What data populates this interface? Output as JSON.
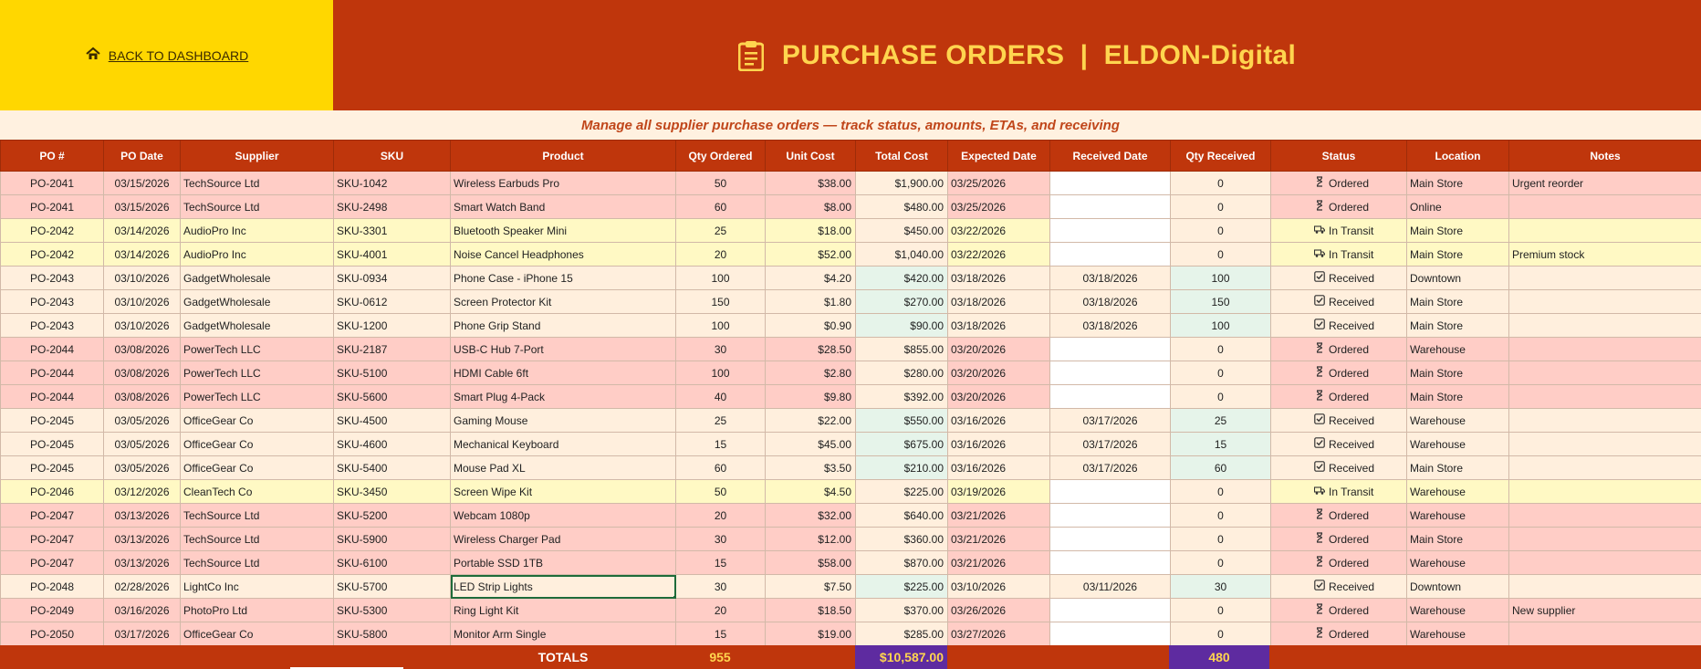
{
  "header": {
    "back_label": "BACK TO DASHBOARD",
    "title": "PURCHASE ORDERS  |  ELDON-Digital",
    "subtitle": "Manage all supplier purchase orders — track status, amounts, ETAs, and receiving",
    "title_color": "#FFD54F",
    "banner_color": "#BF360C",
    "left_panel_color": "#FFD700"
  },
  "columns": [
    "PO #",
    "PO Date",
    "Supplier",
    "SKU",
    "Product",
    "Qty Ordered",
    "Unit Cost",
    "Total Cost",
    "Expected Date",
    "Received Date",
    "Qty Received",
    "Status",
    "Location",
    "Notes"
  ],
  "status_icons": {
    "Ordered": "hourglass-icon",
    "In Transit": "truck-icon",
    "Received": "checkbox-icon"
  },
  "rows": [
    {
      "po": "PO-2041",
      "po_date": "03/15/2026",
      "supplier": "TechSource Ltd",
      "sku": "SKU-1042",
      "product": "Wireless Earbuds Pro",
      "qty": "50",
      "unit": "$38.00",
      "total": "$1,900.00",
      "expected": "03/25/2026",
      "received_date": "",
      "qty_rec": "0",
      "status": "Ordered",
      "location": "Main Store",
      "notes": "Urgent reorder"
    },
    {
      "po": "PO-2041",
      "po_date": "03/15/2026",
      "supplier": "TechSource Ltd",
      "sku": "SKU-2498",
      "product": "Smart Watch Band",
      "qty": "60",
      "unit": "$8.00",
      "total": "$480.00",
      "expected": "03/25/2026",
      "received_date": "",
      "qty_rec": "0",
      "status": "Ordered",
      "location": "Online",
      "notes": ""
    },
    {
      "po": "PO-2042",
      "po_date": "03/14/2026",
      "supplier": "AudioPro Inc",
      "sku": "SKU-3301",
      "product": "Bluetooth Speaker Mini",
      "qty": "25",
      "unit": "$18.00",
      "total": "$450.00",
      "expected": "03/22/2026",
      "received_date": "",
      "qty_rec": "0",
      "status": "In Transit",
      "location": "Main Store",
      "notes": ""
    },
    {
      "po": "PO-2042",
      "po_date": "03/14/2026",
      "supplier": "AudioPro Inc",
      "sku": "SKU-4001",
      "product": "Noise Cancel Headphones",
      "qty": "20",
      "unit": "$52.00",
      "total": "$1,040.00",
      "expected": "03/22/2026",
      "received_date": "",
      "qty_rec": "0",
      "status": "In Transit",
      "location": "Main Store",
      "notes": "Premium stock"
    },
    {
      "po": "PO-2043",
      "po_date": "03/10/2026",
      "supplier": "GadgetWholesale",
      "sku": "SKU-0934",
      "product": "Phone Case - iPhone 15",
      "qty": "100",
      "unit": "$4.20",
      "total": "$420.00",
      "expected": "03/18/2026",
      "received_date": "03/18/2026",
      "qty_rec": "100",
      "status": "Received",
      "location": "Downtown",
      "notes": ""
    },
    {
      "po": "PO-2043",
      "po_date": "03/10/2026",
      "supplier": "GadgetWholesale",
      "sku": "SKU-0612",
      "product": "Screen Protector Kit",
      "qty": "150",
      "unit": "$1.80",
      "total": "$270.00",
      "expected": "03/18/2026",
      "received_date": "03/18/2026",
      "qty_rec": "150",
      "status": "Received",
      "location": "Main Store",
      "notes": ""
    },
    {
      "po": "PO-2043",
      "po_date": "03/10/2026",
      "supplier": "GadgetWholesale",
      "sku": "SKU-1200",
      "product": "Phone Grip Stand",
      "qty": "100",
      "unit": "$0.90",
      "total": "$90.00",
      "expected": "03/18/2026",
      "received_date": "03/18/2026",
      "qty_rec": "100",
      "status": "Received",
      "location": "Main Store",
      "notes": ""
    },
    {
      "po": "PO-2044",
      "po_date": "03/08/2026",
      "supplier": "PowerTech LLC",
      "sku": "SKU-2187",
      "product": "USB-C Hub 7-Port",
      "qty": "30",
      "unit": "$28.50",
      "total": "$855.00",
      "expected": "03/20/2026",
      "received_date": "",
      "qty_rec": "0",
      "status": "Ordered",
      "location": "Warehouse",
      "notes": ""
    },
    {
      "po": "PO-2044",
      "po_date": "03/08/2026",
      "supplier": "PowerTech LLC",
      "sku": "SKU-5100",
      "product": "HDMI Cable 6ft",
      "qty": "100",
      "unit": "$2.80",
      "total": "$280.00",
      "expected": "03/20/2026",
      "received_date": "",
      "qty_rec": "0",
      "status": "Ordered",
      "location": "Main Store",
      "notes": ""
    },
    {
      "po": "PO-2044",
      "po_date": "03/08/2026",
      "supplier": "PowerTech LLC",
      "sku": "SKU-5600",
      "product": "Smart Plug 4-Pack",
      "qty": "40",
      "unit": "$9.80",
      "total": "$392.00",
      "expected": "03/20/2026",
      "received_date": "",
      "qty_rec": "0",
      "status": "Ordered",
      "location": "Main Store",
      "notes": ""
    },
    {
      "po": "PO-2045",
      "po_date": "03/05/2026",
      "supplier": "OfficeGear Co",
      "sku": "SKU-4500",
      "product": "Gaming Mouse",
      "qty": "25",
      "unit": "$22.00",
      "total": "$550.00",
      "expected": "03/16/2026",
      "received_date": "03/17/2026",
      "qty_rec": "25",
      "status": "Received",
      "location": "Warehouse",
      "notes": ""
    },
    {
      "po": "PO-2045",
      "po_date": "03/05/2026",
      "supplier": "OfficeGear Co",
      "sku": "SKU-4600",
      "product": "Mechanical Keyboard",
      "qty": "15",
      "unit": "$45.00",
      "total": "$675.00",
      "expected": "03/16/2026",
      "received_date": "03/17/2026",
      "qty_rec": "15",
      "status": "Received",
      "location": "Warehouse",
      "notes": ""
    },
    {
      "po": "PO-2045",
      "po_date": "03/05/2026",
      "supplier": "OfficeGear Co",
      "sku": "SKU-5400",
      "product": "Mouse Pad XL",
      "qty": "60",
      "unit": "$3.50",
      "total": "$210.00",
      "expected": "03/16/2026",
      "received_date": "03/17/2026",
      "qty_rec": "60",
      "status": "Received",
      "location": "Main Store",
      "notes": ""
    },
    {
      "po": "PO-2046",
      "po_date": "03/12/2026",
      "supplier": "CleanTech Co",
      "sku": "SKU-3450",
      "product": "Screen Wipe Kit",
      "qty": "50",
      "unit": "$4.50",
      "total": "$225.00",
      "expected": "03/19/2026",
      "received_date": "",
      "qty_rec": "0",
      "status": "In Transit",
      "location": "Warehouse",
      "notes": ""
    },
    {
      "po": "PO-2047",
      "po_date": "03/13/2026",
      "supplier": "TechSource Ltd",
      "sku": "SKU-5200",
      "product": "Webcam 1080p",
      "qty": "20",
      "unit": "$32.00",
      "total": "$640.00",
      "expected": "03/21/2026",
      "received_date": "",
      "qty_rec": "0",
      "status": "Ordered",
      "location": "Warehouse",
      "notes": ""
    },
    {
      "po": "PO-2047",
      "po_date": "03/13/2026",
      "supplier": "TechSource Ltd",
      "sku": "SKU-5900",
      "product": "Wireless Charger Pad",
      "qty": "30",
      "unit": "$12.00",
      "total": "$360.00",
      "expected": "03/21/2026",
      "received_date": "",
      "qty_rec": "0",
      "status": "Ordered",
      "location": "Main Store",
      "notes": ""
    },
    {
      "po": "PO-2047",
      "po_date": "03/13/2026",
      "supplier": "TechSource Ltd",
      "sku": "SKU-6100",
      "product": "Portable SSD 1TB",
      "qty": "15",
      "unit": "$58.00",
      "total": "$870.00",
      "expected": "03/21/2026",
      "received_date": "",
      "qty_rec": "0",
      "status": "Ordered",
      "location": "Warehouse",
      "notes": ""
    },
    {
      "po": "PO-2048",
      "po_date": "02/28/2026",
      "supplier": "LightCo Inc",
      "sku": "SKU-5700",
      "product": "LED Strip Lights",
      "qty": "30",
      "unit": "$7.50",
      "total": "$225.00",
      "expected": "03/10/2026",
      "received_date": "03/11/2026",
      "qty_rec": "30",
      "status": "Received",
      "location": "Downtown",
      "notes": "",
      "selected_cell": "product"
    },
    {
      "po": "PO-2049",
      "po_date": "03/16/2026",
      "supplier": "PhotoPro Ltd",
      "sku": "SKU-5300",
      "product": "Ring Light Kit",
      "qty": "20",
      "unit": "$18.50",
      "total": "$370.00",
      "expected": "03/26/2026",
      "received_date": "",
      "qty_rec": "0",
      "status": "Ordered",
      "location": "Warehouse",
      "notes": "New supplier"
    },
    {
      "po": "PO-2050",
      "po_date": "03/17/2026",
      "supplier": "OfficeGear Co",
      "sku": "SKU-5800",
      "product": "Monitor Arm Single",
      "qty": "15",
      "unit": "$19.00",
      "total": "$285.00",
      "expected": "03/27/2026",
      "received_date": "",
      "qty_rec": "0",
      "status": "Ordered",
      "location": "Warehouse",
      "notes": ""
    }
  ],
  "totals": {
    "label": "TOTALS",
    "qty_ordered": "955",
    "total_cost": "$10,587.00",
    "qty_received": "480",
    "highlight_color": "#5E2BA0"
  }
}
